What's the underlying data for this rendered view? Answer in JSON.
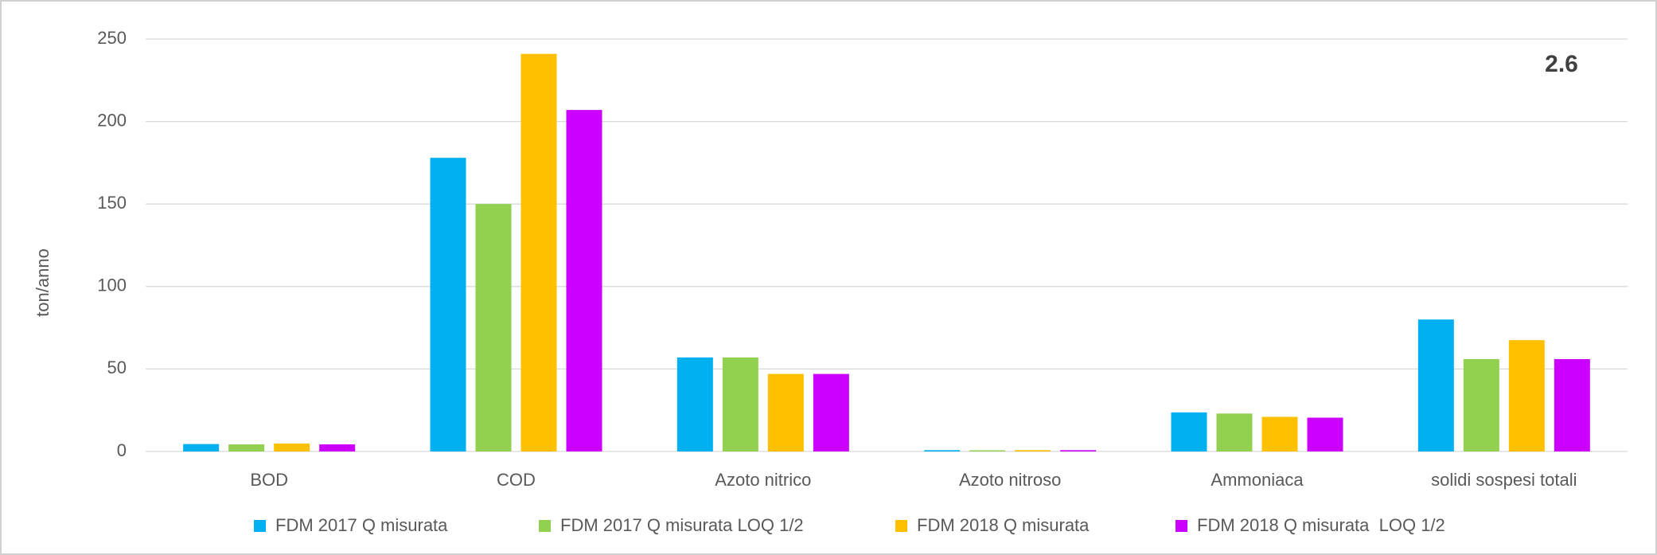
{
  "chart_data": {
    "type": "bar",
    "annotation": "2.6",
    "y_label": "ton/anno",
    "categories": [
      "BOD",
      "COD",
      "Azoto nitrico",
      "Azoto nitroso",
      "Ammoniaca",
      "solidi sospesi totali"
    ],
    "series": [
      {
        "name": "FDM 2017 Q misurata",
        "color": "#00b0f0",
        "values": [
          4.5,
          178,
          57,
          0.8,
          23.7,
          80
        ]
      },
      {
        "name": "FDM 2017 Q misurata LOQ 1/2",
        "color": "#92d050",
        "values": [
          4.3,
          150,
          57,
          0.7,
          23,
          56
        ]
      },
      {
        "name": "FDM 2018 Q misurata",
        "color": "#ffc000",
        "values": [
          4.8,
          241,
          47,
          0.8,
          21,
          67.5
        ]
      },
      {
        "name": "FDM 2018 Q misurata  LOQ 1/2",
        "color": "#cc00ff",
        "values": [
          4.3,
          207,
          47,
          0.8,
          20.5,
          56
        ]
      }
    ],
    "ylim": [
      0,
      250
    ],
    "yticks": [
      0,
      50,
      100,
      150,
      200,
      250
    ],
    "grid": true,
    "legend": "bottom"
  }
}
